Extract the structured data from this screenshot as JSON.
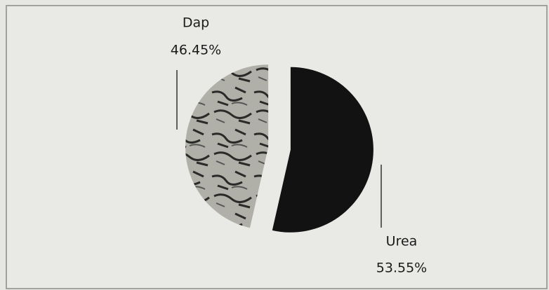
{
  "chart_data": {
    "type": "pie",
    "categories": [
      "Dap",
      "Urea"
    ],
    "values": [
      46.45,
      53.55
    ],
    "value_labels": [
      "46.45%",
      "53.55%"
    ],
    "colors": [
      "#a9a9a2",
      "#121212"
    ]
  }
}
